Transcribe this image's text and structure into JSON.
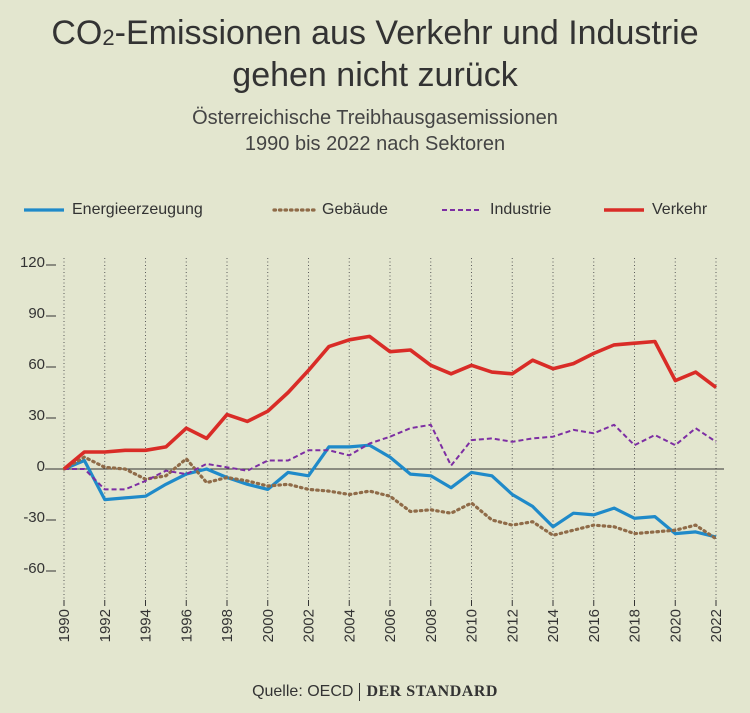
{
  "title_parts": {
    "pre": "CO",
    "sub": "2",
    "post": "-Emissionen aus Verkehr und Industrie",
    "line2": "gehen nicht zurück"
  },
  "subtitle": {
    "line1": "Österreichische Treibhausgasemissionen",
    "line2": "1990 bis 2022 nach Sektoren"
  },
  "source": {
    "label": "Quelle: OECD",
    "brand": "DER STANDARD"
  },
  "chart_data": {
    "type": "line",
    "title": "CO₂-Emissionen aus Verkehr und Industrie gehen nicht zurück",
    "subtitle": "Österreichische Treibhausgasemissionen 1990 bis 2022 nach Sektoren",
    "xlabel": "",
    "ylabel": "",
    "ylim": [
      -70,
      120
    ],
    "yticks": [
      120,
      90,
      60,
      30,
      0,
      -30,
      -60
    ],
    "ytick_labels": [
      "120",
      "90",
      "60",
      "30",
      "0",
      "-30",
      "-60"
    ],
    "xlim": [
      1990,
      2022
    ],
    "xticks": [
      1990,
      1992,
      1994,
      1996,
      1998,
      2000,
      2002,
      2004,
      2006,
      2008,
      2010,
      2012,
      2014,
      2016,
      2018,
      2020,
      2022
    ],
    "xtick_labels": [
      "1990",
      "1992",
      "1994",
      "1996",
      "1998",
      "2000",
      "2002",
      "2004",
      "2006",
      "2008",
      "2010",
      "2012",
      "2014",
      "2016",
      "2018",
      "2020",
      "2022"
    ],
    "legend_position": "top",
    "grid": "vertical dotted",
    "x": [
      1990,
      1991,
      1992,
      1993,
      1994,
      1995,
      1996,
      1997,
      1998,
      1999,
      2000,
      2001,
      2002,
      2003,
      2004,
      2005,
      2006,
      2007,
      2008,
      2009,
      2010,
      2011,
      2012,
      2013,
      2014,
      2015,
      2016,
      2017,
      2018,
      2019,
      2020,
      2021,
      2022
    ],
    "series": [
      {
        "name": "Energieerzeugung",
        "color": "#1f8ac9",
        "style": "solid",
        "values": [
          0,
          5,
          -18,
          -17,
          -16,
          -9,
          -3,
          0,
          -5,
          -9,
          -12,
          -2,
          -4,
          13,
          13,
          14,
          7,
          -3,
          -4,
          -11,
          -2,
          -4,
          -15,
          -22,
          -34,
          -26,
          -27,
          -23,
          -29,
          -28,
          -38,
          -37,
          -40
        ]
      },
      {
        "name": "Gebäude",
        "color": "#8f6b48",
        "style": "dotted",
        "values": [
          0,
          7,
          1,
          0,
          -6,
          -4,
          6,
          -8,
          -5,
          -7,
          -10,
          -9,
          -12,
          -13,
          -15,
          -13,
          -16,
          -25,
          -24,
          -26,
          -20,
          -30,
          -33,
          -31,
          -39,
          -36,
          -33,
          -34,
          -38,
          -37,
          -36,
          -33,
          -41
        ]
      },
      {
        "name": "Industrie",
        "color": "#7d2ea3",
        "style": "dashed",
        "values": [
          0,
          0,
          -12,
          -12,
          -7,
          -1,
          -3,
          3,
          1,
          -1,
          5,
          5,
          11,
          11,
          8,
          15,
          19,
          24,
          26,
          2,
          17,
          18,
          16,
          18,
          19,
          23,
          21,
          26,
          14,
          20,
          14,
          24,
          16
        ]
      },
      {
        "name": "Verkehr",
        "color": "#d92c27",
        "style": "solid",
        "values": [
          0,
          10,
          10,
          11,
          11,
          13,
          24,
          18,
          32,
          28,
          34,
          45,
          58,
          72,
          76,
          78,
          69,
          70,
          61,
          56,
          61,
          57,
          56,
          64,
          59,
          62,
          68,
          73,
          74,
          75,
          52,
          57,
          48
        ]
      }
    ]
  }
}
